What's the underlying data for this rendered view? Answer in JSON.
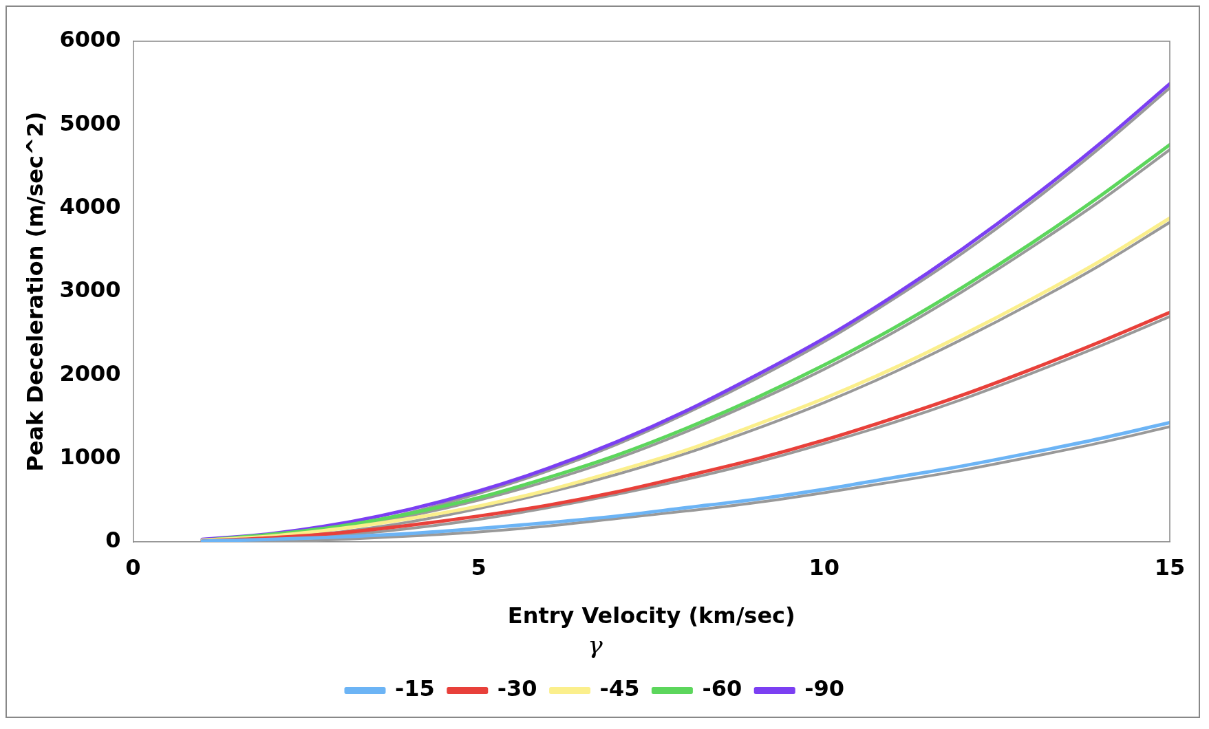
{
  "chart_data": {
    "type": "line",
    "xlabel": "Entry Velocity (km/sec)",
    "ylabel": "Peak Deceleration (m/sec^2)",
    "legend_title": "γ",
    "x": [
      1,
      2,
      3,
      4,
      5,
      6,
      7,
      8,
      9,
      10,
      11,
      12,
      13,
      14,
      15
    ],
    "xlim": [
      0,
      15
    ],
    "xticks": [
      0,
      5,
      10,
      15
    ],
    "ylim": [
      0,
      6000
    ],
    "yticks": [
      0,
      1000,
      2000,
      3000,
      4000,
      5000,
      6000
    ],
    "grid": false,
    "legend": "bottom",
    "marker": "none",
    "line_style": "solid",
    "series": [
      {
        "color": "#999999",
        "values": [
          0,
          60,
          180,
          350,
          580,
          850,
          1170,
          1540,
          1950,
          2400,
          2910,
          3460,
          4070,
          4730,
          5440
        ]
      },
      {
        "color": "#999999",
        "values": [
          0,
          50,
          160,
          310,
          500,
          730,
          1000,
          1320,
          1680,
          2070,
          2510,
          3000,
          3530,
          4090,
          4700
        ]
      },
      {
        "color": "#999999",
        "values": [
          0,
          40,
          120,
          240,
          400,
          590,
          810,
          1060,
          1350,
          1670,
          2030,
          2430,
          2860,
          3320,
          3830
        ]
      },
      {
        "color": "#999999",
        "values": [
          0,
          20,
          80,
          160,
          270,
          410,
          570,
          750,
          950,
          1180,
          1430,
          1710,
          2020,
          2350,
          2700
        ]
      },
      {
        "color": "#999999",
        "values": [
          0,
          0,
          30,
          70,
          120,
          190,
          280,
          370,
          470,
          590,
          720,
          860,
          1020,
          1190,
          1380
        ]
      },
      {
        "name": "-15",
        "color": "#6cb4f5",
        "values": [
          10,
          30,
          60,
          100,
          160,
          230,
          310,
          410,
          510,
          630,
          770,
          910,
          1070,
          1240,
          1430
        ]
      },
      {
        "name": "-30",
        "color": "#e8403a",
        "values": [
          10,
          50,
          110,
          200,
          310,
          440,
          600,
          790,
          990,
          1220,
          1480,
          1760,
          2070,
          2400,
          2750
        ]
      },
      {
        "name": "-45",
        "color": "#fbef8c",
        "values": [
          20,
          70,
          160,
          280,
          430,
          620,
          850,
          1100,
          1400,
          1720,
          2080,
          2480,
          2910,
          3370,
          3880
        ]
      },
      {
        "name": "-60",
        "color": "#5cd65c",
        "values": [
          20,
          90,
          190,
          340,
          530,
          770,
          1040,
          1360,
          1720,
          2120,
          2560,
          3050,
          3580,
          4150,
          4760
        ]
      },
      {
        "name": "-90",
        "color": "#7b3ff2",
        "values": [
          30,
          100,
          220,
          390,
          610,
          880,
          1200,
          1570,
          1990,
          2440,
          2950,
          3510,
          4120,
          4780,
          5490
        ]
      }
    ]
  }
}
